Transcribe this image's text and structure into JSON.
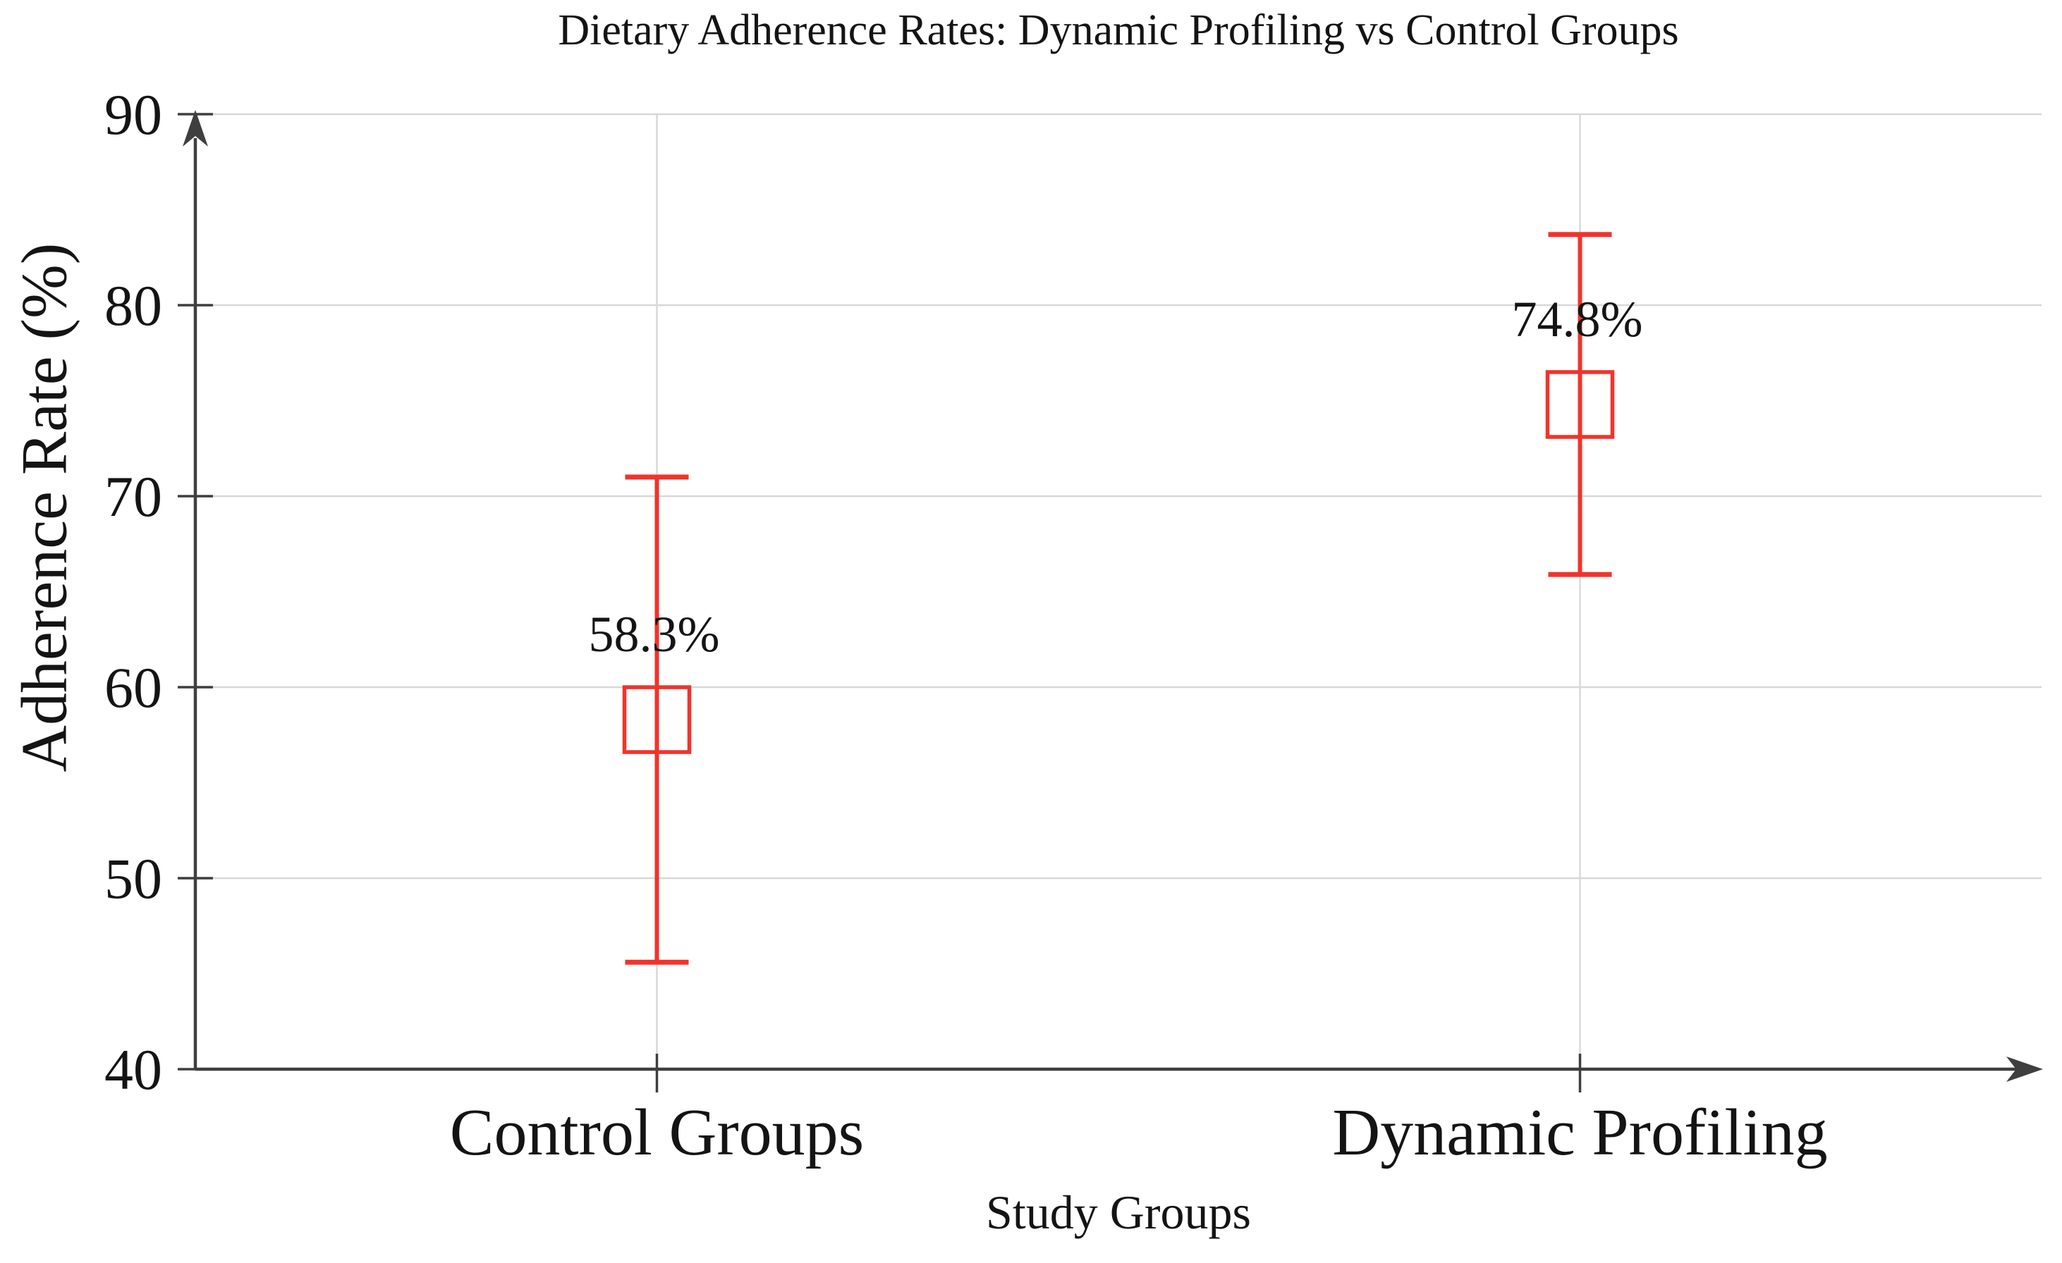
{
  "title": "Dietary Adherence Rates: Dynamic Profiling vs Control Groups",
  "chart_data": {
    "type": "scatter",
    "subtype": "errorbar",
    "title": "Dietary Adherence Rates: Dynamic Profiling vs Control Groups",
    "xlabel": "Study Groups",
    "ylabel": "Adherence Rate (%)",
    "categories": [
      "Control Groups",
      "Dynamic Profiling"
    ],
    "series": [
      {
        "name": "Adherence Rate",
        "points": [
          {
            "category": "Control Groups",
            "value": 58.3,
            "error": 12.7,
            "upper": 71.0,
            "lower": 45.6,
            "label": "58.3%"
          },
          {
            "category": "Dynamic Profiling",
            "value": 74.8,
            "error": 8.9,
            "upper": 83.7,
            "lower": 65.9,
            "label": "74.8%"
          }
        ]
      }
    ],
    "ylim": [
      40,
      90
    ],
    "yticks": [
      40,
      50,
      60,
      70,
      80,
      90
    ],
    "ytick_labels": [
      "40",
      "50",
      "60",
      "70",
      "80",
      "90"
    ],
    "grid": true,
    "legend": "none",
    "marker": "open-square",
    "axis_arrows": true,
    "colors": {
      "series": "#f2332b",
      "axis": "#3f3f3f",
      "grid": "#d8d8d8",
      "text": "#141414",
      "background": "#ffffff"
    }
  }
}
